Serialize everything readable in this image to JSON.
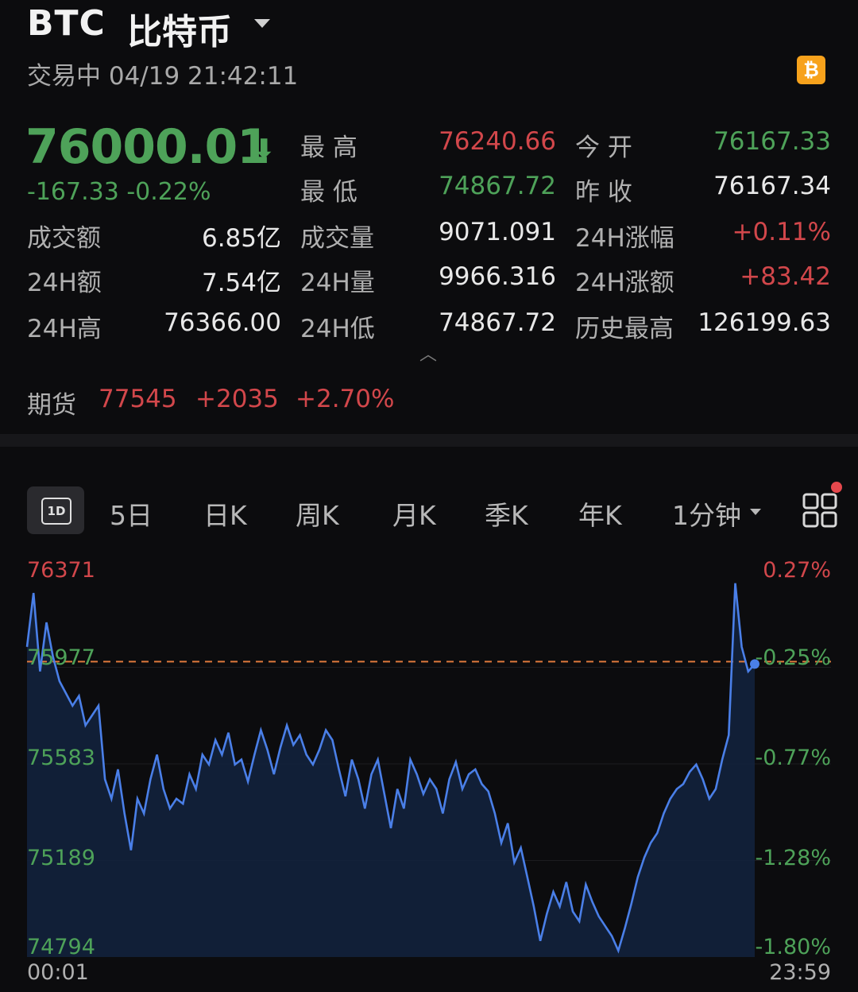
{
  "header": {
    "symbol": "BTC",
    "name": "比特币",
    "status": "交易中 04/19 21:42:11",
    "coin_icon": "₿"
  },
  "quote": {
    "price": "76000.01",
    "change": "-167.33  -0.22%",
    "arrow_icon": "down-arrow-icon"
  },
  "stats": {
    "high_label": "最  高",
    "high": "76240.66",
    "open_label": "今  开",
    "open": "76167.33",
    "low_label": "最  低",
    "low": "74867.72",
    "prev_label": "昨  收",
    "prev_close": "76167.34",
    "turnover_label": "成交额",
    "turnover": "6.85亿",
    "volume_label": "成交量",
    "volume": "9071.091",
    "pct24_label": "24H涨幅",
    "pct24": "+0.11%",
    "amt24_label": "24H额",
    "amt24": "7.54亿",
    "vol24_label": "24H量",
    "vol24": "9966.316",
    "chg24_label": "24H涨额",
    "chg24": "+83.42",
    "high24_label": "24H高",
    "high24": "76366.00",
    "low24_label": "24H低",
    "low24": "74867.72",
    "ath_label": "历史最高",
    "ath": "126199.63"
  },
  "futures": {
    "label": "期货",
    "price": "77545",
    "change": "+2035",
    "pct": "+2.70%"
  },
  "tabs": {
    "t1d": "1D",
    "t5d": "5日",
    "day": "日K",
    "week": "周K",
    "month": "月K",
    "quarter": "季K",
    "year": "年K",
    "interval": "1分钟"
  },
  "colors": {
    "up": "#d2474b",
    "down": "#4ea259",
    "line": "#4a7fe8",
    "ref": "#e07a3c"
  },
  "chart_data": {
    "type": "line",
    "x_start": "00:01",
    "x_end": "23:59",
    "y_ticks": [
      "76371",
      "75977",
      "75583",
      "75189",
      "74794"
    ],
    "pct_ticks": [
      "0.27%",
      "-0.25%",
      "-0.77%",
      "-1.28%",
      "-1.80%"
    ],
    "ylim": [
      74794,
      76371
    ],
    "reference": 76000,
    "series": [
      {
        "values": [
          76060,
          76280,
          75960,
          76160,
          76020,
          75920,
          75870,
          75820,
          75860,
          75740,
          75780,
          75820,
          75520,
          75440,
          75560,
          75380,
          75230,
          75440,
          75380,
          75520,
          75620,
          75480,
          75400,
          75440,
          75420,
          75540,
          75480,
          75620,
          75580,
          75680,
          75620,
          75710,
          75580,
          75600,
          75510,
          75620,
          75720,
          75640,
          75540,
          75650,
          75740,
          75660,
          75700,
          75620,
          75580,
          75640,
          75720,
          75680,
          75560,
          75450,
          75600,
          75520,
          75400,
          75540,
          75600,
          75460,
          75320,
          75480,
          75400,
          75600,
          75540,
          75460,
          75520,
          75480,
          75380,
          75520,
          75590,
          75480,
          75540,
          75560,
          75500,
          75470,
          75380,
          75260,
          75340,
          75180,
          75240,
          75120,
          75000,
          74860,
          74970,
          75060,
          75000,
          75100,
          74980,
          74940,
          75090,
          75020,
          74960,
          74920,
          74880,
          74820,
          74910,
          75010,
          75120,
          75200,
          75260,
          75300,
          75380,
          75440,
          75480,
          75500,
          75550,
          75580,
          75520,
          75440,
          75480,
          75600,
          75700,
          76320,
          76060,
          75960,
          75990
        ]
      }
    ]
  }
}
